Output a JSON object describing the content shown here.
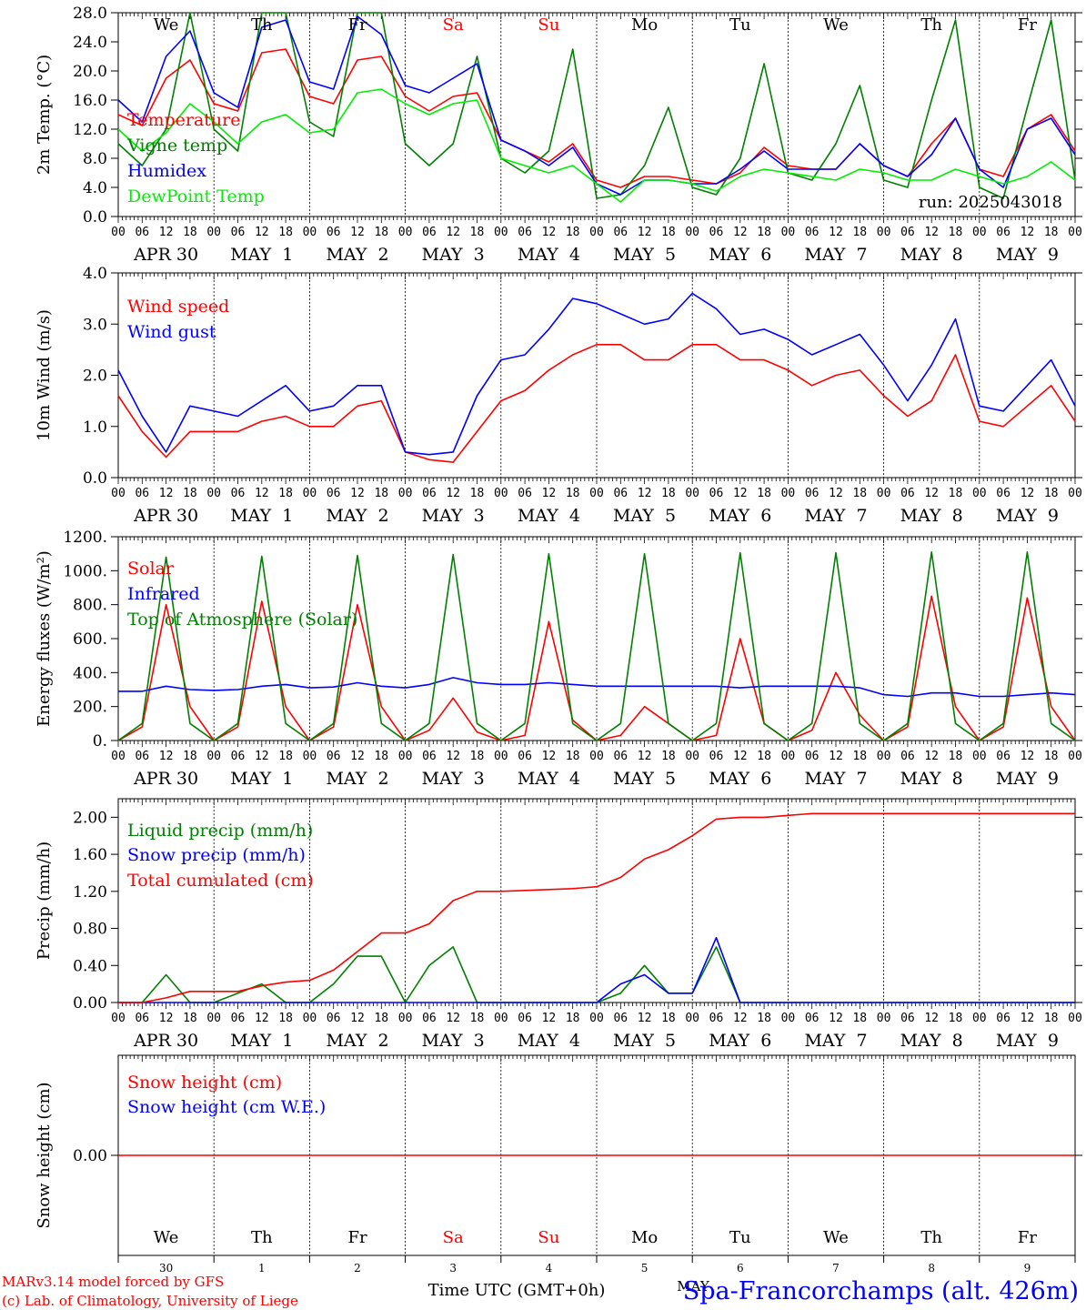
{
  "colors": {
    "red": "#ff0000",
    "green": "#008000",
    "blue": "#0000ff",
    "lime": "#00ee00",
    "black": "#000000",
    "weekend": "#ff0000"
  },
  "axis": {
    "hour_labels": [
      "00",
      "06",
      "12",
      "18"
    ],
    "final_hour_label": "00",
    "date_labels": [
      "APR 30",
      "MAY  1",
      "MAY  2",
      "MAY  3",
      "MAY  4",
      "MAY  5",
      "MAY  6",
      "MAY  7",
      "MAY  8",
      "MAY  9"
    ],
    "days_top": [
      "We",
      "Th",
      "Fr",
      "Sa",
      "Su",
      "Mo",
      "Tu",
      "We",
      "Th",
      "Fr"
    ],
    "weekend_days": [
      "Sa",
      "Su"
    ],
    "days_bottom": [
      "We",
      "Th",
      "Fr",
      "Sa",
      "Su",
      "Mo",
      "Tu",
      "We",
      "Th",
      "Fr"
    ],
    "day_numbers": [
      "30",
      "1",
      "2",
      "3",
      "4",
      "5",
      "6",
      "7",
      "8",
      "9"
    ],
    "month_label": "MAY"
  },
  "footer": {
    "model_line": "MARv3.14 model forced by GFS",
    "credit_line": "(c) Lab. of Climatology, University of Liege",
    "time_label": "Time UTC (GMT+0h)",
    "station": "Spa-Francorchamps (alt. 426m)"
  },
  "chart_data": [
    {
      "id": "temperature",
      "type": "line",
      "ylabel": "2m Temp. (°C)",
      "ylim": [
        0,
        28
      ],
      "yticks": [
        "0.0",
        "4.0",
        "8.0",
        "12.0",
        "16.0",
        "20.0",
        "24.0",
        "28.0"
      ],
      "run_label": "run: 2025043018",
      "x_hours_step": 6,
      "series": [
        {
          "name": "Temperature",
          "color": "#ff0000",
          "values": [
            14,
            12.5,
            19,
            21.5,
            15.5,
            14.5,
            22.5,
            23,
            16.5,
            15.5,
            21.5,
            22,
            16.5,
            14.5,
            16.5,
            17,
            10.5,
            9,
            7.5,
            10,
            5,
            4,
            5.5,
            5.5,
            5,
            4.5,
            6,
            9.5,
            7,
            6.5,
            6.5,
            10,
            7,
            5.5,
            10,
            13.5,
            6.5,
            5.5,
            12,
            14,
            9
          ]
        },
        {
          "name": "Vigne temp",
          "color": "#008000",
          "values": [
            10,
            7,
            12,
            28,
            12,
            9,
            28,
            28,
            13,
            11,
            28,
            28,
            10,
            7,
            10,
            22,
            8,
            6,
            9,
            23,
            2.5,
            3,
            7,
            15,
            4,
            3,
            8,
            21,
            6,
            5,
            10,
            18,
            5,
            4,
            16,
            27,
            4,
            2.5,
            15,
            27,
            5
          ]
        },
        {
          "name": "Humidex",
          "color": "#0000ff",
          "values": [
            16,
            13,
            22,
            25.5,
            17,
            15,
            26,
            27,
            18.5,
            17.5,
            27.5,
            25,
            18,
            17,
            19,
            21,
            10.5,
            9,
            7,
            9.5,
            4.5,
            3,
            5,
            5,
            4.5,
            4.5,
            6.5,
            9,
            6.5,
            6.5,
            6.5,
            10,
            7,
            5.5,
            8.5,
            13.5,
            6.5,
            4,
            12,
            13.5,
            8.5
          ]
        },
        {
          "name": "DewPoint Temp",
          "color": "#00ee00",
          "values": [
            12,
            9,
            11.5,
            15.5,
            13,
            10,
            13,
            14,
            11.5,
            12,
            17,
            17.5,
            15.5,
            14,
            15.5,
            16,
            8,
            7,
            6,
            7,
            4.5,
            2,
            5,
            5,
            4.5,
            3.5,
            5.5,
            6.5,
            6,
            5.5,
            5,
            6.5,
            6,
            5,
            5,
            6.5,
            5.5,
            4.5,
            5.5,
            7.5,
            5
          ]
        }
      ]
    },
    {
      "id": "wind",
      "type": "line",
      "ylabel": "10m Wind (m/s)",
      "ylim": [
        0,
        4
      ],
      "yticks": [
        "0.0",
        "1.0",
        "2.0",
        "3.0",
        "4.0"
      ],
      "x_hours_step": 6,
      "series": [
        {
          "name": "Wind speed",
          "color": "#ff0000",
          "values": [
            1.6,
            0.9,
            0.4,
            0.9,
            0.9,
            0.9,
            1.1,
            1.2,
            1,
            1,
            1.4,
            1.5,
            0.5,
            0.35,
            0.3,
            0.9,
            1.5,
            1.7,
            2.1,
            2.4,
            2.6,
            2.6,
            2.3,
            2.3,
            2.6,
            2.6,
            2.3,
            2.3,
            2.1,
            1.8,
            2,
            2.1,
            1.6,
            1.2,
            1.5,
            2.4,
            1.1,
            1,
            1.4,
            1.8,
            1.1
          ]
        },
        {
          "name": "Wind gust",
          "color": "#0000ff",
          "values": [
            2.1,
            1.2,
            0.5,
            1.4,
            1.3,
            1.2,
            1.5,
            1.8,
            1.3,
            1.4,
            1.8,
            1.8,
            0.5,
            0.45,
            0.5,
            1.6,
            2.3,
            2.4,
            2.9,
            3.5,
            3.4,
            3.2,
            3.0,
            3.1,
            3.6,
            3.3,
            2.8,
            2.9,
            2.7,
            2.4,
            2.6,
            2.8,
            2.2,
            1.5,
            2.2,
            3.1,
            1.4,
            1.3,
            1.8,
            2.3,
            1.4
          ]
        }
      ]
    },
    {
      "id": "energy",
      "type": "line",
      "ylabel": "Energy fluxes (W/m²)",
      "ylim": [
        0,
        1200
      ],
      "yticks": [
        "0.",
        "200.",
        "400.",
        "600.",
        "800.",
        "1000.",
        "1200."
      ],
      "x_hours_step": 6,
      "series": [
        {
          "name": "Solar",
          "color": "#ff0000",
          "values": [
            0,
            80,
            800,
            200,
            0,
            80,
            820,
            200,
            0,
            80,
            800,
            200,
            0,
            60,
            250,
            50,
            0,
            30,
            700,
            120,
            0,
            30,
            200,
            100,
            0,
            30,
            600,
            100,
            0,
            60,
            400,
            150,
            0,
            80,
            850,
            200,
            0,
            80,
            840,
            200,
            0
          ]
        },
        {
          "name": "Infrared",
          "color": "#0000ff",
          "values": [
            290,
            290,
            320,
            300,
            295,
            300,
            320,
            330,
            310,
            315,
            340,
            320,
            310,
            330,
            370,
            340,
            330,
            330,
            340,
            330,
            320,
            320,
            320,
            320,
            320,
            320,
            310,
            320,
            320,
            320,
            320,
            310,
            270,
            260,
            280,
            280,
            260,
            260,
            270,
            280,
            270
          ]
        },
        {
          "name": "Top of Atmosphere (Solar)",
          "color": "#008000",
          "values": [
            0,
            100,
            1080,
            100,
            0,
            100,
            1085,
            100,
            0,
            100,
            1090,
            100,
            0,
            100,
            1095,
            100,
            0,
            100,
            1100,
            100,
            0,
            100,
            1100,
            100,
            0,
            100,
            1105,
            100,
            0,
            100,
            1105,
            100,
            0,
            100,
            1110,
            100,
            0,
            100,
            1110,
            100,
            0
          ]
        }
      ]
    },
    {
      "id": "precip",
      "type": "line",
      "ylabel": "Precip (mm/h)",
      "ylim": [
        0,
        2.2
      ],
      "yticks": [
        "0.00",
        "0.40",
        "0.80",
        "1.20",
        "1.60",
        "2.00"
      ],
      "x_hours_step": 6,
      "series": [
        {
          "name": "Liquid precip (mm/h)",
          "color": "#008000",
          "values": [
            0,
            0,
            0.3,
            0,
            0,
            0.1,
            0.2,
            0,
            0,
            0.2,
            0.5,
            0.5,
            0,
            0.4,
            0.6,
            0,
            0,
            0,
            0,
            0,
            0,
            0.1,
            0.4,
            0.1,
            0.1,
            0.6,
            0,
            0,
            0,
            0,
            0,
            0,
            0,
            0,
            0,
            0,
            0,
            0,
            0,
            0,
            0
          ]
        },
        {
          "name": "Snow precip (mm/h)",
          "color": "#0000ff",
          "values": [
            0,
            0,
            0,
            0,
            0,
            0,
            0,
            0,
            0,
            0,
            0,
            0,
            0,
            0,
            0,
            0,
            0,
            0,
            0,
            0,
            0,
            0.2,
            0.3,
            0.1,
            0.1,
            0.7,
            0,
            0,
            0,
            0,
            0,
            0,
            0,
            0,
            0,
            0,
            0,
            0,
            0,
            0,
            0
          ]
        },
        {
          "name": "Total cumulated (cm)",
          "color": "#ff0000",
          "values": [
            0,
            0,
            0.05,
            0.12,
            0.12,
            0.12,
            0.18,
            0.22,
            0.24,
            0.35,
            0.55,
            0.75,
            0.75,
            0.85,
            1.1,
            1.2,
            1.2,
            1.21,
            1.22,
            1.23,
            1.25,
            1.35,
            1.55,
            1.65,
            1.8,
            1.98,
            2.0,
            2.0,
            2.02,
            2.04,
            2.04,
            2.04,
            2.04,
            2.04,
            2.04,
            2.04,
            2.04,
            2.04,
            2.04,
            2.04,
            2.04
          ]
        }
      ]
    },
    {
      "id": "snow",
      "type": "line",
      "ylabel": "Snow height (cm)",
      "ylim": [
        -1,
        1
      ],
      "yticks": [
        "0.00"
      ],
      "x_hours_step": 6,
      "series": [
        {
          "name": "Snow height (cm)",
          "color": "#ff0000",
          "values": [
            0,
            0,
            0,
            0,
            0,
            0,
            0,
            0,
            0,
            0,
            0,
            0,
            0,
            0,
            0,
            0,
            0,
            0,
            0,
            0,
            0,
            0,
            0,
            0,
            0,
            0,
            0,
            0,
            0,
            0,
            0,
            0,
            0,
            0,
            0,
            0,
            0,
            0,
            0,
            0,
            0
          ]
        },
        {
          "name": "Snow height (cm W.E.)",
          "color": "#0000ff",
          "values": []
        }
      ]
    }
  ]
}
